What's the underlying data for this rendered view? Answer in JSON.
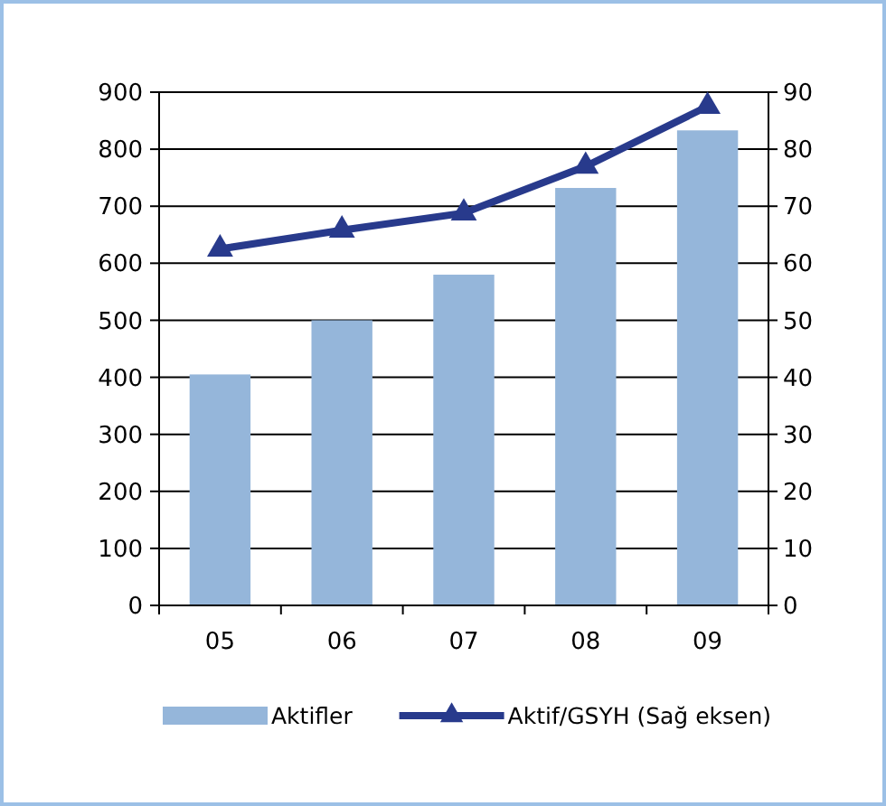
{
  "chart_data": {
    "type": "bar",
    "categories": [
      "05",
      "06",
      "07",
      "08",
      "09"
    ],
    "series": [
      {
        "name": "Aktifler",
        "color": "#95b6da",
        "values": [
          405,
          500,
          580,
          732,
          833
        ]
      },
      {
        "name": "Aktif/GSYH (Sağ eksen)",
        "type": "line",
        "axis": "y2",
        "color": "#283a8c",
        "marker": "triangle",
        "values": [
          62.5,
          65.8,
          68.8,
          77,
          87.5
        ]
      }
    ],
    "ylim": [
      0,
      900
    ],
    "yticks": [
      0,
      100,
      200,
      300,
      400,
      500,
      600,
      700,
      800,
      900
    ],
    "y2lim": [
      0,
      90
    ],
    "y2ticks": [
      0,
      10,
      20,
      30,
      40,
      50,
      60,
      70,
      80,
      90
    ],
    "grid": "y",
    "legend": "bottom"
  }
}
